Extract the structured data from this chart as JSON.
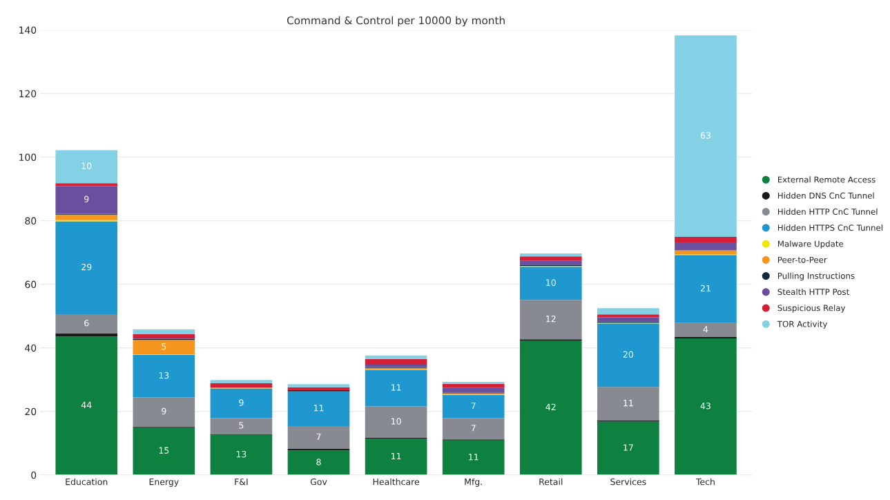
{
  "chart_data": {
    "type": "bar",
    "stacked": true,
    "title": "Command & Control per 10000 by month",
    "categories": [
      "Education",
      "Energy",
      "F&I",
      "Gov",
      "Healthcare",
      "Mfg.",
      "Retail",
      "Services",
      "Tech"
    ],
    "series": [
      {
        "name": "External Remote Access",
        "color": "#0e8140",
        "values": [
          43.6,
          15.0,
          12.6,
          7.7,
          11.4,
          10.9,
          42.3,
          16.8,
          43.0
        ],
        "value_labels": [
          "44",
          "15",
          "13",
          "8",
          "11",
          "11",
          "42",
          "17",
          "43"
        ]
      },
      {
        "name": "Hidden DNS CnC Tunnel",
        "color": "#1a1a1a",
        "values": [
          1.0,
          0.3,
          0.3,
          0.5,
          0.3,
          0.3,
          0.4,
          0.3,
          0.4
        ]
      },
      {
        "name": "Hidden HTTP CnC Tunnel",
        "color": "#878a91",
        "values": [
          6.0,
          9.1,
          5.0,
          7.2,
          9.9,
          6.7,
          12.4,
          10.6,
          4.4
        ],
        "value_labels": [
          "6",
          "9",
          "5",
          "7",
          "10",
          "7",
          "12",
          "11",
          "4"
        ]
      },
      {
        "name": "Hidden HTTPS CnC Tunnel",
        "color": "#1e98cf",
        "values": [
          29.2,
          13.4,
          9.3,
          10.9,
          11.4,
          7.3,
          10.4,
          20.0,
          21.4
        ],
        "value_labels": [
          "29",
          "13",
          "9",
          "11",
          "11",
          "7",
          "10",
          "20",
          "21"
        ]
      },
      {
        "name": "Malware Update",
        "color": "#f2e600",
        "values": [
          0.4,
          0.1,
          0.1,
          0,
          0.1,
          0.2,
          0.1,
          0.1,
          0.2
        ]
      },
      {
        "name": "Peer-to-Peer",
        "color": "#f7961d",
        "values": [
          1.7,
          4.6,
          0.2,
          0,
          0.6,
          0.3,
          0.2,
          0.2,
          1.3
        ],
        "value_labels": [
          null,
          "5",
          null,
          null,
          null,
          null,
          null,
          null,
          null
        ]
      },
      {
        "name": "Pulling Instructions",
        "color": "#0f2a3c",
        "values": [
          0.3,
          0.3,
          null,
          0.4,
          0.2,
          0.2,
          0.2,
          0.3,
          null
        ]
      },
      {
        "name": "Stealth HTTP Post",
        "color": "#6a4f9e",
        "values": [
          8.7,
          0.2,
          0,
          0,
          0.8,
          1.6,
          1.5,
          1.3,
          2.5
        ],
        "value_labels": [
          "9",
          null,
          null,
          null,
          null,
          null,
          null,
          null,
          null
        ]
      },
      {
        "name": "Suspicious Relay",
        "color": "#d32037",
        "values": [
          0.9,
          1.3,
          1.4,
          0.9,
          1.8,
          1.2,
          1.3,
          0.9,
          1.7
        ]
      },
      {
        "name": "TOR Activity",
        "color": "#84d0e4",
        "values": [
          10.4,
          1.5,
          1.0,
          1.0,
          1.1,
          0.6,
          0.9,
          2.0,
          63.4
        ],
        "value_labels": [
          "10",
          null,
          null,
          null,
          null,
          null,
          null,
          null,
          "63"
        ]
      }
    ],
    "ylim": [
      0,
      140
    ],
    "yticks": [
      0,
      20,
      40,
      60,
      80,
      100,
      120,
      140
    ],
    "grid": "y",
    "legend": "right"
  }
}
